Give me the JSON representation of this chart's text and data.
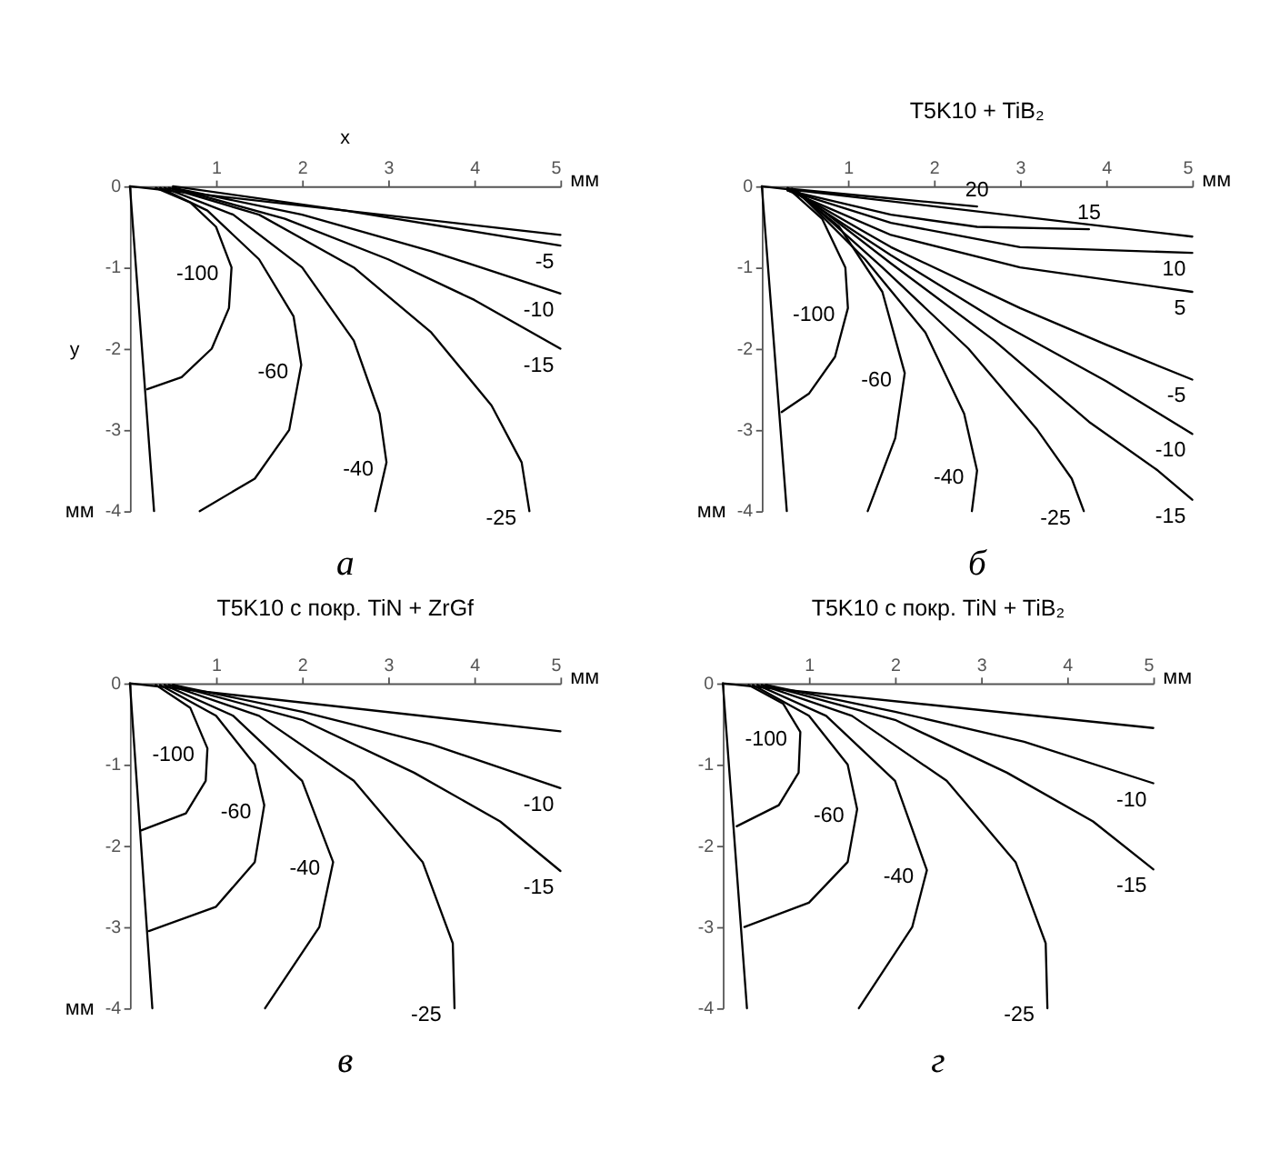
{
  "chart_data": [
    {
      "type": "line",
      "xlabel": "мм",
      "ylabel": "мм",
      "xlim": [
        0,
        5
      ],
      "ylim": [
        -4,
        0
      ],
      "xticks": [
        1,
        2,
        3,
        4,
        5
      ],
      "yticks": [
        0,
        -1,
        -2,
        -3,
        -4
      ],
      "series": [
        {
          "color": "#000000",
          "x": [
            0,
            5
          ],
          "values": [
            0,
            -0.6
          ]
        },
        {
          "color": "#000000",
          "x": [
            0,
            0.28
          ],
          "values": [
            0,
            -4
          ]
        },
        {
          "name": "-100",
          "color": "#000000",
          "x": [
            0.3,
            0.7,
            1.0,
            1.18,
            1.15,
            0.95,
            0.6,
            0.2
          ],
          "values": [
            -0.02,
            -0.2,
            -0.5,
            -1.0,
            -1.5,
            -2.0,
            -2.35,
            -2.5
          ]
        },
        {
          "name": "-60",
          "color": "#000000",
          "x": [
            0.35,
            0.9,
            1.5,
            1.9,
            1.99,
            1.85,
            1.45,
            0.81
          ],
          "values": [
            -0.02,
            -0.3,
            -0.9,
            -1.6,
            -2.2,
            -3.0,
            -3.6,
            -4
          ]
        },
        {
          "name": "-40",
          "color": "#000000",
          "x": [
            0.4,
            1.2,
            2.0,
            2.6,
            2.9,
            2.98,
            2.85
          ],
          "values": [
            -0.02,
            -0.35,
            -1.0,
            -1.9,
            -2.8,
            -3.4,
            -4
          ]
        },
        {
          "name": "-25",
          "color": "#000000",
          "x": [
            0.45,
            1.5,
            2.6,
            3.5,
            4.2,
            4.55,
            4.64
          ],
          "values": [
            -0.02,
            -0.35,
            -1.0,
            -1.8,
            -2.7,
            -3.4,
            -4
          ]
        },
        {
          "name": "-15",
          "color": "#000000",
          "x": [
            0.5,
            1.8,
            3.0,
            4.0,
            5
          ],
          "values": [
            -0.02,
            -0.4,
            -0.9,
            -1.4,
            -2.0
          ]
        },
        {
          "name": "-10",
          "color": "#000000",
          "x": [
            0.5,
            2,
            3.5,
            5
          ],
          "values": [
            -0.02,
            -0.35,
            -0.8,
            -1.32
          ]
        },
        {
          "name": "-5",
          "color": "#000000",
          "x": [
            0.5,
            2.5,
            5
          ],
          "values": [
            0,
            -0.3,
            -0.73
          ]
        }
      ],
      "annotations": [
        "а",
        "x",
        "y"
      ]
    },
    {
      "type": "line",
      "title": "T5K10 + TiB₂",
      "xlabel": "мм",
      "ylabel": "мм",
      "xlim": [
        0,
        5
      ],
      "ylim": [
        -4,
        0
      ],
      "xticks": [
        1,
        2,
        3,
        4,
        5
      ],
      "yticks": [
        0,
        -1,
        -2,
        -3,
        -4
      ],
      "series": [
        {
          "color": "#000000",
          "x": [
            0,
            5
          ],
          "values": [
            0,
            -0.62
          ]
        },
        {
          "color": "#000000",
          "x": [
            0,
            0.29
          ],
          "values": [
            0,
            -4
          ]
        },
        {
          "name": "20",
          "color": "#000000",
          "x": [
            0.3,
            1.5,
            2.5
          ],
          "values": [
            -0.03,
            -0.15,
            -0.25
          ]
        },
        {
          "name": "15",
          "color": "#000000",
          "x": [
            0.3,
            1.5,
            2.5,
            3.8
          ],
          "values": [
            -0.05,
            -0.35,
            -0.5,
            -0.53
          ]
        },
        {
          "name": "10",
          "color": "#000000",
          "x": [
            0.3,
            1.5,
            3,
            5
          ],
          "values": [
            -0.05,
            -0.45,
            -0.75,
            -0.82
          ]
        },
        {
          "name": "5",
          "color": "#000000",
          "x": [
            0.3,
            1.5,
            3,
            5
          ],
          "values": [
            -0.05,
            -0.6,
            -1.0,
            -1.3
          ]
        },
        {
          "name": "-5",
          "color": "#000000",
          "x": [
            0.35,
            1.5,
            3,
            4,
            5
          ],
          "values": [
            -0.05,
            -0.75,
            -1.5,
            -1.95,
            -2.38
          ]
        },
        {
          "name": "-10",
          "color": "#000000",
          "x": [
            0.35,
            1.5,
            2.8,
            4,
            5
          ],
          "values": [
            -0.05,
            -0.85,
            -1.7,
            -2.4,
            -3.05
          ]
        },
        {
          "name": "-15",
          "color": "#000000",
          "x": [
            0.4,
            1.5,
            2.7,
            3.8,
            4.6,
            5
          ],
          "values": [
            -0.05,
            -0.95,
            -1.9,
            -2.9,
            -3.5,
            -3.86
          ]
        },
        {
          "name": "-25",
          "color": "#000000",
          "x": [
            0.4,
            1.4,
            2.4,
            3.2,
            3.6,
            3.74
          ],
          "values": [
            -0.05,
            -1.0,
            -2.0,
            -3.0,
            -3.6,
            -4
          ]
        },
        {
          "name": "-40",
          "color": "#000000",
          "x": [
            0.4,
            1.2,
            1.9,
            2.35,
            2.5,
            2.44
          ],
          "values": [
            -0.05,
            -0.9,
            -1.8,
            -2.8,
            -3.5,
            -4
          ]
        },
        {
          "name": "-60",
          "color": "#000000",
          "x": [
            0.35,
            0.9,
            1.4,
            1.66,
            1.55,
            1.23
          ],
          "values": [
            -0.03,
            -0.5,
            -1.3,
            -2.3,
            -3.1,
            -4
          ]
        },
        {
          "name": "-100",
          "color": "#000000",
          "x": [
            0.3,
            0.7,
            0.97,
            1.0,
            0.85,
            0.55,
            0.23
          ],
          "values": [
            -0.02,
            -0.4,
            -1.0,
            -1.5,
            -2.1,
            -2.55,
            -2.78
          ]
        }
      ],
      "annotations": [
        "б"
      ]
    },
    {
      "type": "line",
      "title": "T5K10 с покр. TiN + ZrGf",
      "xlabel": "мм",
      "ylabel": "мм",
      "xlim": [
        0,
        5
      ],
      "ylim": [
        -4,
        0
      ],
      "xticks": [
        1,
        2,
        3,
        4,
        5
      ],
      "yticks": [
        0,
        -1,
        -2,
        -3,
        -4
      ],
      "series": [
        {
          "color": "#000000",
          "x": [
            0,
            5
          ],
          "values": [
            0,
            -0.59
          ]
        },
        {
          "color": "#000000",
          "x": [
            0,
            0.26
          ],
          "values": [
            0,
            -4
          ]
        },
        {
          "name": "-100",
          "color": "#000000",
          "x": [
            0.3,
            0.7,
            0.9,
            0.88,
            0.65,
            0.13
          ],
          "values": [
            -0.02,
            -0.3,
            -0.8,
            -1.2,
            -1.6,
            -1.81
          ]
        },
        {
          "name": "-60",
          "color": "#000000",
          "x": [
            0.35,
            1.0,
            1.45,
            1.56,
            1.45,
            1.0,
            0.22
          ],
          "values": [
            -0.02,
            -0.4,
            -1.0,
            -1.5,
            -2.2,
            -2.75,
            -3.05
          ]
        },
        {
          "name": "-40",
          "color": "#000000",
          "x": [
            0.4,
            1.2,
            2.0,
            2.36,
            2.2,
            1.57
          ],
          "values": [
            -0.02,
            -0.4,
            -1.2,
            -2.2,
            -3.0,
            -4
          ]
        },
        {
          "name": "-25",
          "color": "#000000",
          "x": [
            0.45,
            1.5,
            2.6,
            3.4,
            3.75,
            3.77
          ],
          "values": [
            -0.02,
            -0.4,
            -1.2,
            -2.2,
            -3.2,
            -4
          ]
        },
        {
          "name": "-15",
          "color": "#000000",
          "x": [
            0.5,
            2,
            3.3,
            4.3,
            5
          ],
          "values": [
            -0.02,
            -0.45,
            -1.1,
            -1.7,
            -2.31
          ]
        },
        {
          "name": "-10",
          "color": "#000000",
          "x": [
            0.5,
            2,
            3.5,
            5
          ],
          "values": [
            -0.02,
            -0.35,
            -0.75,
            -1.29
          ]
        }
      ],
      "annotations": [
        "в"
      ]
    },
    {
      "type": "line",
      "title": "T5K10 с покр. TiN + TiB₂",
      "xlabel": "мм",
      "xlim": [
        0,
        5
      ],
      "ylim": [
        -4,
        0
      ],
      "xticks": [
        1,
        2,
        3,
        4,
        5
      ],
      "yticks": [
        0,
        -1,
        -2,
        -3,
        -4
      ],
      "series": [
        {
          "color": "#000000",
          "x": [
            0,
            5
          ],
          "values": [
            0,
            -0.55
          ]
        },
        {
          "color": "#000000",
          "x": [
            0,
            0.28
          ],
          "values": [
            0,
            -4
          ]
        },
        {
          "name": "-100",
          "color": "#000000",
          "x": [
            0.3,
            0.7,
            0.9,
            0.88,
            0.65,
            0.16
          ],
          "values": [
            -0.02,
            -0.25,
            -0.6,
            -1.1,
            -1.5,
            -1.76
          ]
        },
        {
          "name": "-60",
          "color": "#000000",
          "x": [
            0.35,
            1.0,
            1.45,
            1.56,
            1.45,
            1.0,
            0.25
          ],
          "values": [
            -0.02,
            -0.4,
            -1.0,
            -1.55,
            -2.2,
            -2.7,
            -3.0
          ]
        },
        {
          "name": "-40",
          "color": "#000000",
          "x": [
            0.4,
            1.2,
            2.0,
            2.37,
            2.2,
            1.58
          ],
          "values": [
            -0.02,
            -0.4,
            -1.2,
            -2.3,
            -3.0,
            -4
          ]
        },
        {
          "name": "-25",
          "color": "#000000",
          "x": [
            0.45,
            1.5,
            2.6,
            3.4,
            3.75,
            3.77
          ],
          "values": [
            -0.02,
            -0.4,
            -1.2,
            -2.2,
            -3.2,
            -4
          ]
        },
        {
          "name": "-15",
          "color": "#000000",
          "x": [
            0.5,
            2,
            3.3,
            4.3,
            5
          ],
          "values": [
            -0.02,
            -0.45,
            -1.1,
            -1.7,
            -2.29
          ]
        },
        {
          "name": "-10",
          "color": "#000000",
          "x": [
            0.5,
            2,
            3.5,
            5
          ],
          "values": [
            -0.02,
            -0.35,
            -0.72,
            -1.23
          ]
        }
      ],
      "annotations": [
        "г"
      ]
    }
  ]
}
